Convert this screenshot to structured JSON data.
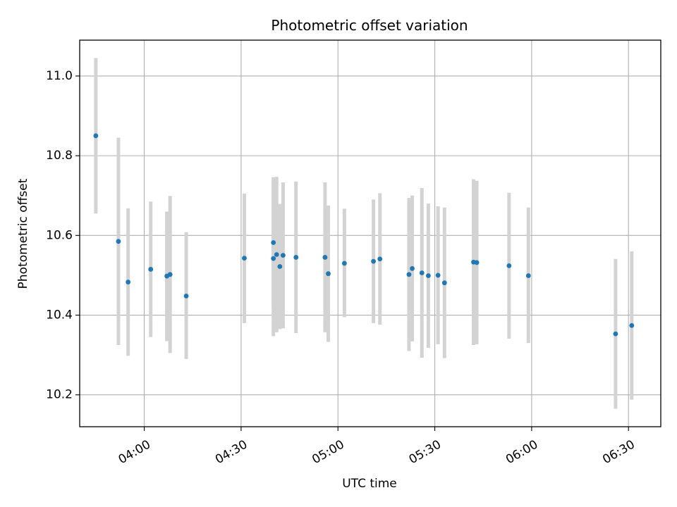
{
  "chart_data": {
    "type": "scatter",
    "title": "Photometric offset variation",
    "xlabel": "UTC time",
    "ylabel": "Photometric offset",
    "x_tick_labels": [
      "04:00",
      "04:30",
      "05:00",
      "05:30",
      "06:00",
      "06:30"
    ],
    "x_tick_minutes": [
      240,
      270,
      300,
      330,
      360,
      390
    ],
    "y_tick_labels": [
      "10.2",
      "10.4",
      "10.6",
      "10.8",
      "11.0"
    ],
    "y_tick_values": [
      10.2,
      10.4,
      10.6,
      10.8,
      11.0
    ],
    "xlim": [
      "03:40",
      "06:40"
    ],
    "ylim": [
      10.12,
      11.09
    ],
    "grid": true,
    "colors": {
      "point": "#1f77b4",
      "errorbar": "#d3d3d3",
      "grid": "#b0b0b0",
      "axis": "#000000"
    },
    "series": [
      {
        "points": [
          {
            "x": "03:45",
            "y": 10.85,
            "lo": 10.655,
            "hi": 11.045
          },
          {
            "x": "03:52",
            "y": 10.585,
            "lo": 10.325,
            "hi": 10.845
          },
          {
            "x": "03:55",
            "y": 10.483,
            "lo": 10.298,
            "hi": 10.668
          },
          {
            "x": "04:02",
            "y": 10.515,
            "lo": 10.345,
            "hi": 10.685
          },
          {
            "x": "04:07",
            "y": 10.498,
            "lo": 10.335,
            "hi": 10.66
          },
          {
            "x": "04:08",
            "y": 10.502,
            "lo": 10.305,
            "hi": 10.699
          },
          {
            "x": "04:13",
            "y": 10.448,
            "lo": 10.29,
            "hi": 10.608
          },
          {
            "x": "04:31",
            "y": 10.543,
            "lo": 10.38,
            "hi": 10.705
          },
          {
            "x": "04:40",
            "y": 10.582,
            "lo": 10.418,
            "hi": 10.746
          },
          {
            "x": "04:40",
            "y": 10.542,
            "lo": 10.347,
            "hi": 10.737
          },
          {
            "x": "04:41",
            "y": 10.552,
            "lo": 10.357,
            "hi": 10.747
          },
          {
            "x": "04:42",
            "y": 10.522,
            "lo": 10.365,
            "hi": 10.679
          },
          {
            "x": "04:43",
            "y": 10.55,
            "lo": 10.367,
            "hi": 10.733
          },
          {
            "x": "04:47",
            "y": 10.545,
            "lo": 10.355,
            "hi": 10.735
          },
          {
            "x": "04:56",
            "y": 10.545,
            "lo": 10.357,
            "hi": 10.733
          },
          {
            "x": "04:57",
            "y": 10.504,
            "lo": 10.333,
            "hi": 10.675
          },
          {
            "x": "05:02",
            "y": 10.53,
            "lo": 10.395,
            "hi": 10.667
          },
          {
            "x": "05:11",
            "y": 10.535,
            "lo": 10.38,
            "hi": 10.69
          },
          {
            "x": "05:13",
            "y": 10.541,
            "lo": 10.376,
            "hi": 10.706
          },
          {
            "x": "05:22",
            "y": 10.502,
            "lo": 10.31,
            "hi": 10.694
          },
          {
            "x": "05:23",
            "y": 10.517,
            "lo": 10.334,
            "hi": 10.7
          },
          {
            "x": "05:26",
            "y": 10.506,
            "lo": 10.293,
            "hi": 10.719
          },
          {
            "x": "05:28",
            "y": 10.499,
            "lo": 10.318,
            "hi": 10.68
          },
          {
            "x": "05:31",
            "y": 10.5,
            "lo": 10.327,
            "hi": 10.673
          },
          {
            "x": "05:33",
            "y": 10.481,
            "lo": 10.292,
            "hi": 10.67
          },
          {
            "x": "05:42",
            "y": 10.533,
            "lo": 10.325,
            "hi": 10.741
          },
          {
            "x": "05:43",
            "y": 10.532,
            "lo": 10.327,
            "hi": 10.737
          },
          {
            "x": "05:53",
            "y": 10.524,
            "lo": 10.341,
            "hi": 10.707
          },
          {
            "x": "05:59",
            "y": 10.499,
            "lo": 10.33,
            "hi": 10.67
          },
          {
            "x": "06:26",
            "y": 10.353,
            "lo": 10.165,
            "hi": 10.541
          },
          {
            "x": "06:31",
            "y": 10.374,
            "lo": 10.188,
            "hi": 10.56
          }
        ]
      }
    ]
  }
}
